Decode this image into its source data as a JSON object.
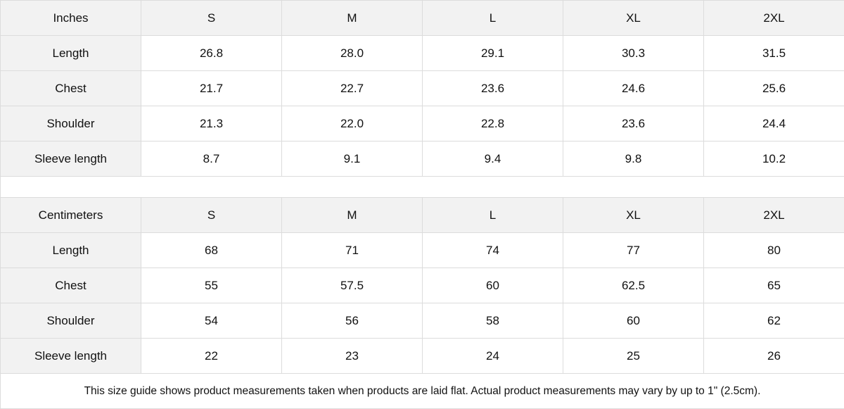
{
  "tables": [
    {
      "unit": "Inches",
      "sizes": [
        "S",
        "M",
        "L",
        "XL",
        "2XL"
      ],
      "rows": [
        {
          "label": "Length",
          "values": [
            "26.8",
            "28.0",
            "29.1",
            "30.3",
            "31.5"
          ]
        },
        {
          "label": "Chest",
          "values": [
            "21.7",
            "22.7",
            "23.6",
            "24.6",
            "25.6"
          ]
        },
        {
          "label": "Shoulder",
          "values": [
            "21.3",
            "22.0",
            "22.8",
            "23.6",
            "24.4"
          ]
        },
        {
          "label": "Sleeve length",
          "values": [
            "8.7",
            "9.1",
            "9.4",
            "9.8",
            "10.2"
          ]
        }
      ]
    },
    {
      "unit": "Centimeters",
      "sizes": [
        "S",
        "M",
        "L",
        "XL",
        "2XL"
      ],
      "rows": [
        {
          "label": "Length",
          "values": [
            "68",
            "71",
            "74",
            "77",
            "80"
          ]
        },
        {
          "label": "Chest",
          "values": [
            "55",
            "57.5",
            "60",
            "62.5",
            "65"
          ]
        },
        {
          "label": "Shoulder",
          "values": [
            "54",
            "56",
            "58",
            "60",
            "62"
          ]
        },
        {
          "label": "Sleeve length",
          "values": [
            "22",
            "23",
            "24",
            "25",
            "26"
          ]
        }
      ]
    }
  ],
  "note": "This size guide shows product measurements taken when products are laid flat.  Actual product measurements may vary by up to 1\" (2.5cm).",
  "colors": {
    "header_bg": "#f2f2f2",
    "border": "#dcdcdc"
  }
}
